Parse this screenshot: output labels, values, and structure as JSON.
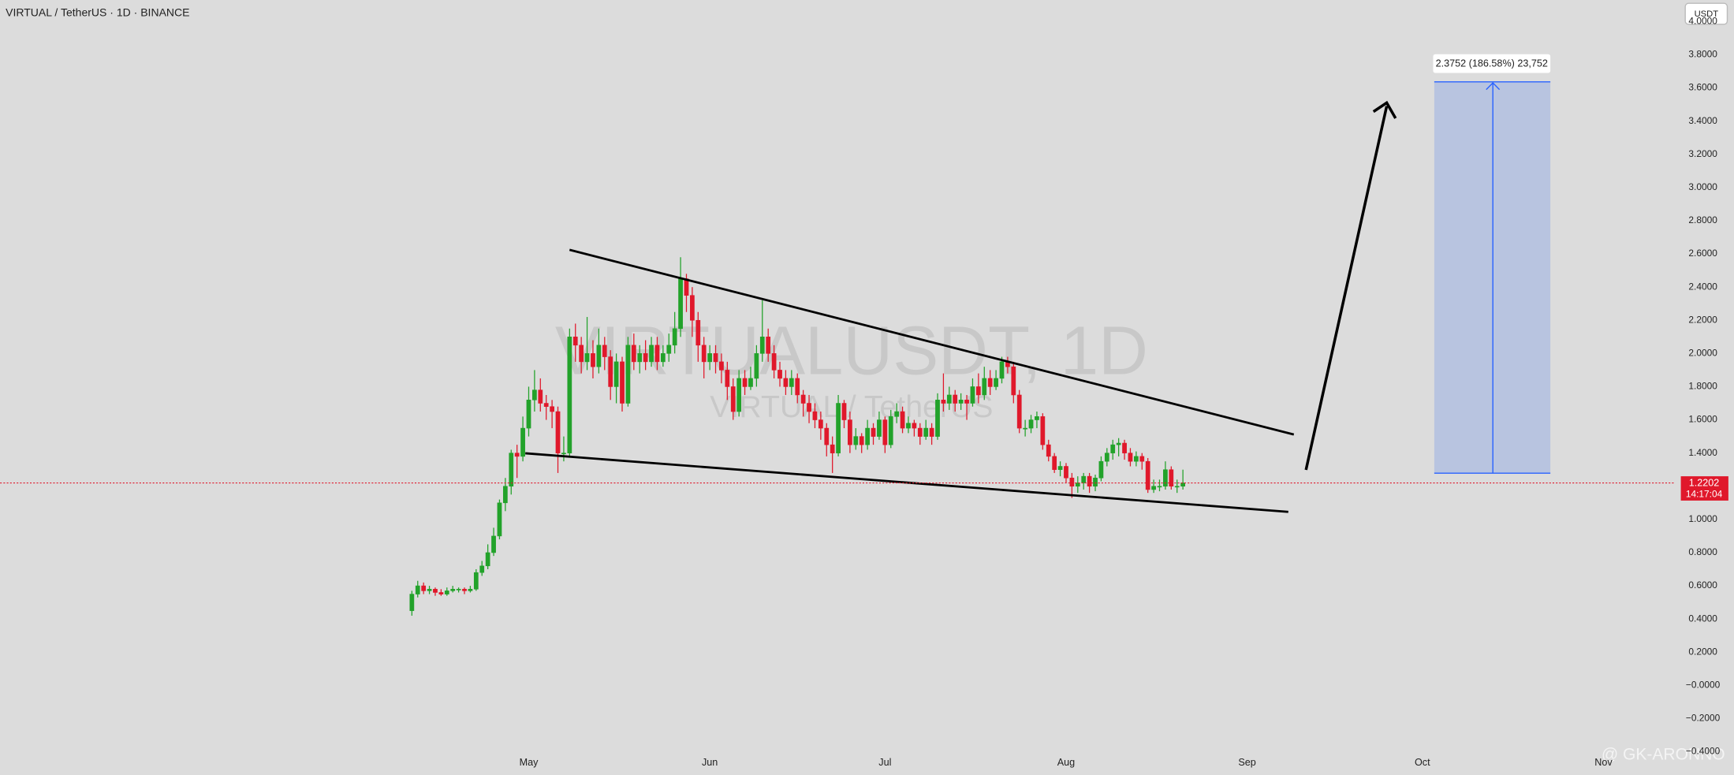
{
  "chart_data": {
    "type": "candlestick",
    "title": "VIRTUAL / TetherUS · 1D · BINANCE",
    "currency": "USDT",
    "watermark": "VIRTUALUSDT, 1D",
    "watermark_sub": "VIRTUAL / TetherUS",
    "measure_label": "2.3752 (186.58%) 23,752",
    "credit": "@ GK-ARONNO",
    "last_price": 1.2202,
    "countdown": "14:17:04",
    "up_color": "#22a22a",
    "down_color": "#e0182b",
    "ylim": [
      -0.42,
      4.13
    ],
    "yticks": [
      {
        "value": -0.4,
        "label": "−0.4000"
      },
      {
        "value": -0.2,
        "label": "−0.2000"
      },
      {
        "value": 0,
        "label": "−0.0000"
      },
      {
        "value": 0.2,
        "label": "0.2000"
      },
      {
        "value": 0.4,
        "label": "0.4000"
      },
      {
        "value": 0.6,
        "label": "0.6000"
      },
      {
        "value": 0.8,
        "label": "0.8000"
      },
      {
        "value": 1,
        "label": "1.0000"
      },
      {
        "value": 1.2,
        "label": "1.2000"
      },
      {
        "value": 1.4,
        "label": "1.4000"
      },
      {
        "value": 1.6,
        "label": "1.6000"
      },
      {
        "value": 1.8,
        "label": "1.8000"
      },
      {
        "value": 2,
        "label": "2.0000"
      },
      {
        "value": 2.2,
        "label": "2.2000"
      },
      {
        "value": 2.4,
        "label": "2.4000"
      },
      {
        "value": 2.6,
        "label": "2.6000"
      },
      {
        "value": 2.8,
        "label": "2.8000"
      },
      {
        "value": 3,
        "label": "3.0000"
      },
      {
        "value": 3.2,
        "label": "3.2000"
      },
      {
        "value": 3.4,
        "label": "3.4000"
      },
      {
        "value": 3.6,
        "label": "3.6000"
      },
      {
        "value": 3.8,
        "label": "3.8000"
      },
      {
        "value": 4,
        "label": "4.0000"
      }
    ],
    "xlim": [
      -70.5,
      216.3
    ],
    "xticks": [
      {
        "value": 20,
        "label": "May"
      },
      {
        "value": 51,
        "label": "Jun"
      },
      {
        "value": 81,
        "label": "Jul"
      },
      {
        "value": 112,
        "label": "Aug"
      },
      {
        "value": 143,
        "label": "Sep"
      },
      {
        "value": 173,
        "label": "Oct"
      },
      {
        "value": 204,
        "label": "Nov"
      }
    ],
    "ohlc": [
      [
        0.45,
        0.57,
        0.42,
        0.55
      ],
      [
        0.55,
        0.63,
        0.53,
        0.6
      ],
      [
        0.6,
        0.62,
        0.55,
        0.57
      ],
      [
        0.57,
        0.6,
        0.55,
        0.58
      ],
      [
        0.58,
        0.59,
        0.54,
        0.56
      ],
      [
        0.56,
        0.58,
        0.54,
        0.55
      ],
      [
        0.55,
        0.59,
        0.54,
        0.57
      ],
      [
        0.57,
        0.6,
        0.56,
        0.58
      ],
      [
        0.58,
        0.59,
        0.56,
        0.58
      ],
      [
        0.58,
        0.59,
        0.55,
        0.57
      ],
      [
        0.57,
        0.6,
        0.56,
        0.58
      ],
      [
        0.58,
        0.7,
        0.57,
        0.68
      ],
      [
        0.68,
        0.75,
        0.66,
        0.72
      ],
      [
        0.72,
        0.85,
        0.7,
        0.8
      ],
      [
        0.8,
        0.95,
        0.78,
        0.9
      ],
      [
        0.9,
        1.12,
        0.88,
        1.1
      ],
      [
        1.1,
        1.25,
        1.05,
        1.2
      ],
      [
        1.2,
        1.42,
        1.15,
        1.4
      ],
      [
        1.4,
        1.45,
        1.25,
        1.38
      ],
      [
        1.38,
        1.62,
        1.35,
        1.55
      ],
      [
        1.55,
        1.8,
        1.5,
        1.72
      ],
      [
        1.72,
        1.9,
        1.65,
        1.78
      ],
      [
        1.78,
        1.85,
        1.65,
        1.7
      ],
      [
        1.7,
        1.75,
        1.6,
        1.68
      ],
      [
        1.68,
        1.72,
        1.55,
        1.65
      ],
      [
        1.65,
        1.68,
        1.28,
        1.4
      ],
      [
        1.4,
        1.5,
        1.35,
        1.4
      ],
      [
        1.4,
        2.15,
        1.38,
        2.1
      ],
      [
        2.1,
        2.18,
        1.95,
        2.05
      ],
      [
        2.05,
        2.1,
        1.88,
        1.95
      ],
      [
        1.95,
        2.22,
        1.9,
        2.0
      ],
      [
        2.0,
        2.08,
        1.85,
        1.92
      ],
      [
        1.92,
        2.15,
        1.88,
        2.05
      ],
      [
        2.05,
        2.1,
        1.9,
        1.98
      ],
      [
        1.98,
        2.02,
        1.72,
        1.8
      ],
      [
        1.8,
        2.0,
        1.7,
        1.95
      ],
      [
        1.95,
        1.98,
        1.65,
        1.7
      ],
      [
        1.7,
        2.1,
        1.68,
        2.05
      ],
      [
        2.05,
        2.12,
        1.9,
        1.95
      ],
      [
        1.95,
        2.05,
        1.88,
        2.0
      ],
      [
        2.0,
        2.08,
        1.9,
        1.95
      ],
      [
        1.95,
        2.1,
        1.92,
        2.05
      ],
      [
        2.05,
        2.1,
        1.9,
        1.95
      ],
      [
        1.95,
        2.05,
        1.92,
        2.0
      ],
      [
        2.0,
        2.12,
        1.95,
        2.05
      ],
      [
        2.05,
        2.25,
        2.0,
        2.15
      ],
      [
        2.15,
        2.58,
        2.1,
        2.45
      ],
      [
        2.45,
        2.48,
        2.25,
        2.35
      ],
      [
        2.35,
        2.4,
        2.1,
        2.2
      ],
      [
        2.2,
        2.25,
        1.95,
        2.05
      ],
      [
        2.05,
        2.1,
        1.85,
        1.95
      ],
      [
        1.95,
        2.05,
        1.9,
        2.0
      ],
      [
        2.0,
        2.05,
        1.88,
        1.95
      ],
      [
        1.95,
        2.0,
        1.82,
        1.9
      ],
      [
        1.9,
        1.95,
        1.72,
        1.8
      ],
      [
        1.8,
        1.85,
        1.6,
        1.65
      ],
      [
        1.65,
        1.9,
        1.62,
        1.85
      ],
      [
        1.85,
        1.9,
        1.75,
        1.8
      ],
      [
        1.8,
        1.92,
        1.78,
        1.85
      ],
      [
        1.85,
        2.05,
        1.8,
        2.0
      ],
      [
        2.0,
        2.32,
        1.95,
        2.1
      ],
      [
        2.1,
        2.15,
        1.95,
        2.0
      ],
      [
        2.0,
        2.05,
        1.85,
        1.9
      ],
      [
        1.9,
        1.95,
        1.8,
        1.85
      ],
      [
        1.85,
        1.9,
        1.75,
        1.8
      ],
      [
        1.8,
        1.9,
        1.75,
        1.85
      ],
      [
        1.85,
        1.88,
        1.7,
        1.75
      ],
      [
        1.75,
        1.78,
        1.62,
        1.7
      ],
      [
        1.7,
        1.75,
        1.58,
        1.65
      ],
      [
        1.65,
        1.7,
        1.55,
        1.6
      ],
      [
        1.6,
        1.65,
        1.48,
        1.55
      ],
      [
        1.55,
        1.58,
        1.38,
        1.45
      ],
      [
        1.45,
        1.5,
        1.28,
        1.4
      ],
      [
        1.4,
        1.75,
        1.38,
        1.7
      ],
      [
        1.7,
        1.72,
        1.55,
        1.6
      ],
      [
        1.6,
        1.65,
        1.4,
        1.45
      ],
      [
        1.45,
        1.55,
        1.42,
        1.5
      ],
      [
        1.5,
        1.52,
        1.4,
        1.45
      ],
      [
        1.45,
        1.6,
        1.42,
        1.55
      ],
      [
        1.55,
        1.58,
        1.45,
        1.5
      ],
      [
        1.5,
        1.65,
        1.48,
        1.6
      ],
      [
        1.6,
        1.62,
        1.4,
        1.45
      ],
      [
        1.45,
        1.66,
        1.43,
        1.62
      ],
      [
        1.62,
        1.7,
        1.58,
        1.65
      ],
      [
        1.65,
        1.68,
        1.52,
        1.55
      ],
      [
        1.55,
        1.62,
        1.52,
        1.58
      ],
      [
        1.58,
        1.6,
        1.5,
        1.55
      ],
      [
        1.55,
        1.58,
        1.45,
        1.5
      ],
      [
        1.5,
        1.6,
        1.48,
        1.55
      ],
      [
        1.55,
        1.58,
        1.45,
        1.5
      ],
      [
        1.5,
        1.76,
        1.48,
        1.72
      ],
      [
        1.72,
        1.88,
        1.65,
        1.7
      ],
      [
        1.7,
        1.8,
        1.66,
        1.75
      ],
      [
        1.75,
        1.78,
        1.65,
        1.7
      ],
      [
        1.7,
        1.76,
        1.66,
        1.72
      ],
      [
        1.72,
        1.75,
        1.6,
        1.7
      ],
      [
        1.7,
        1.85,
        1.68,
        1.8
      ],
      [
        1.8,
        1.88,
        1.7,
        1.75
      ],
      [
        1.75,
        1.92,
        1.72,
        1.85
      ],
      [
        1.85,
        1.9,
        1.75,
        1.8
      ],
      [
        1.8,
        1.9,
        1.78,
        1.85
      ],
      [
        1.85,
        1.98,
        1.82,
        1.95
      ],
      [
        1.95,
        1.98,
        1.88,
        1.92
      ],
      [
        1.92,
        1.95,
        1.7,
        1.75
      ],
      [
        1.75,
        1.78,
        1.52,
        1.55
      ],
      [
        1.55,
        1.6,
        1.5,
        1.55
      ],
      [
        1.55,
        1.63,
        1.52,
        1.6
      ],
      [
        1.6,
        1.65,
        1.55,
        1.62
      ],
      [
        1.62,
        1.64,
        1.42,
        1.45
      ],
      [
        1.45,
        1.48,
        1.35,
        1.38
      ],
      [
        1.38,
        1.4,
        1.28,
        1.3
      ],
      [
        1.3,
        1.35,
        1.26,
        1.32
      ],
      [
        1.32,
        1.34,
        1.22,
        1.25
      ],
      [
        1.25,
        1.28,
        1.13,
        1.2
      ],
      [
        1.2,
        1.26,
        1.16,
        1.22
      ],
      [
        1.22,
        1.28,
        1.18,
        1.26
      ],
      [
        1.26,
        1.28,
        1.16,
        1.2
      ],
      [
        1.2,
        1.27,
        1.17,
        1.25
      ],
      [
        1.25,
        1.38,
        1.23,
        1.35
      ],
      [
        1.35,
        1.43,
        1.32,
        1.4
      ],
      [
        1.4,
        1.48,
        1.36,
        1.45
      ],
      [
        1.45,
        1.49,
        1.38,
        1.46
      ],
      [
        1.46,
        1.48,
        1.36,
        1.4
      ],
      [
        1.4,
        1.43,
        1.32,
        1.35
      ],
      [
        1.35,
        1.41,
        1.32,
        1.38
      ],
      [
        1.38,
        1.4,
        1.3,
        1.35
      ],
      [
        1.35,
        1.37,
        1.16,
        1.18
      ],
      [
        1.18,
        1.24,
        1.16,
        1.2
      ],
      [
        1.2,
        1.24,
        1.17,
        1.2
      ],
      [
        1.2,
        1.35,
        1.18,
        1.3
      ],
      [
        1.3,
        1.32,
        1.18,
        1.2
      ],
      [
        1.2,
        1.24,
        1.16,
        1.2
      ],
      [
        1.2,
        1.3,
        1.18,
        1.2202
      ]
    ]
  }
}
